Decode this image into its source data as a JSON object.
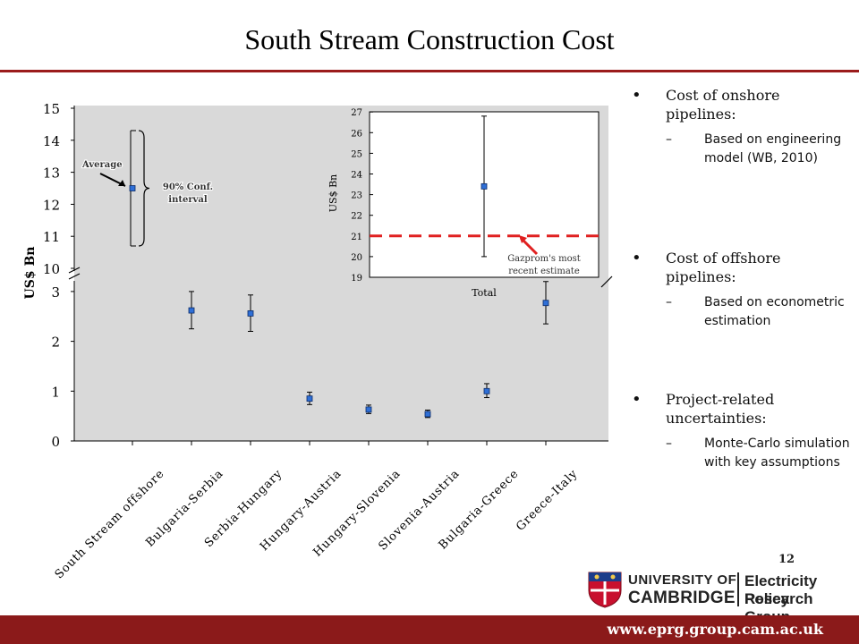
{
  "slide": {
    "title": "South Stream Construction Cost",
    "page_number": "12",
    "footer_url": "www.eprg.group.cam.ac.uk"
  },
  "logo": {
    "line1": "UNIVERSITY OF",
    "line2": "CAMBRIDGE",
    "group_line1": "Electricity Policy",
    "group_line2": "Research Group"
  },
  "bullets": [
    {
      "text": "Cost of onshore pipelines:",
      "sub": "Based on engineering model (WB, 2010)"
    },
    {
      "text": "Cost of offshore pipelines:",
      "sub": "Based on econometric estimation"
    },
    {
      "text": "Project-related uncertainties:",
      "sub": "Monte-Carlo simulation with key assumptions"
    }
  ],
  "colors": {
    "accent": "#8b1a1a",
    "plot_bg": "#d9d9d9",
    "marker": "#2f6fd6",
    "estimate_line": "#e02020"
  },
  "chart_data": [
    {
      "type": "scatter",
      "title": "",
      "xlabel": "",
      "ylabel": "US$ Bn",
      "axis_break": true,
      "lower_range": [
        0,
        3
      ],
      "upper_range": [
        10,
        15
      ],
      "lower_ticks": [
        "0",
        "1",
        "2",
        "3"
      ],
      "upper_ticks": [
        "10",
        "11",
        "12",
        "13",
        "14",
        "15"
      ],
      "categories": [
        "South Stream offshore",
        "Bulgaria-Serbia",
        "Serbia-Hungary",
        "Hungary-Austria",
        "Hungary-Slovenia",
        "Slovenia-Austria",
        "Bulgaria-Greece",
        "Greece-Italy"
      ],
      "values": [
        12.5,
        2.62,
        2.56,
        0.85,
        0.63,
        0.54,
        1.0,
        2.77
      ],
      "error_low": [
        10.7,
        2.25,
        2.2,
        0.73,
        0.55,
        0.47,
        0.87,
        2.35
      ],
      "error_high": [
        14.3,
        3.0,
        2.93,
        0.98,
        0.72,
        0.62,
        1.15,
        3.2
      ],
      "annotations": [
        {
          "text": "Average"
        },
        {
          "text": "90% Conf.",
          "text2": "interval"
        }
      ]
    },
    {
      "type": "scatter",
      "title": "",
      "ylabel": "US$ Bn",
      "categories": [
        "Total"
      ],
      "values": [
        23.4
      ],
      "error_low": [
        20.0
      ],
      "error_high": [
        26.8
      ],
      "ylim": [
        19,
        27
      ],
      "ticks": [
        "19",
        "20",
        "21",
        "22",
        "23",
        "24",
        "25",
        "26",
        "27"
      ],
      "reference_line": {
        "value": 21.0,
        "label_line1": "Gazprom's most",
        "label_line2": "recent estimate"
      }
    }
  ]
}
